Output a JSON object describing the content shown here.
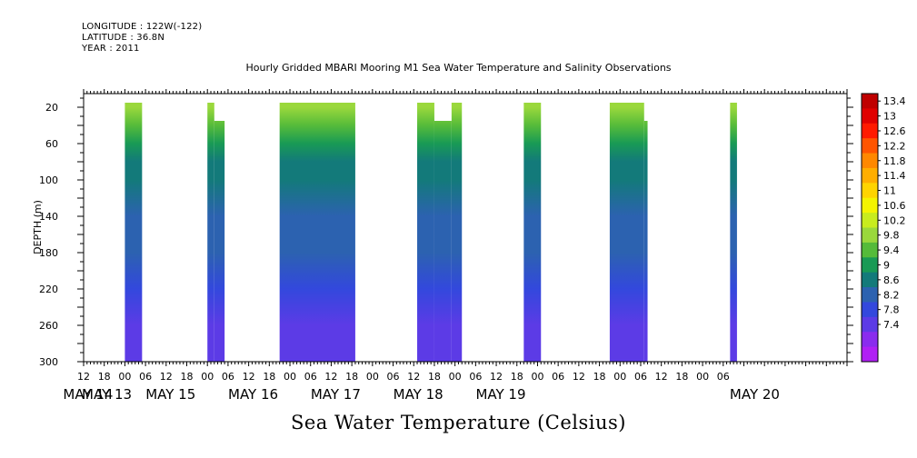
{
  "header": {
    "longitude": "LONGITUDE : 122W(-122)",
    "latitude": "LATITUDE : 36.8N",
    "year": "YEAR : 2011"
  },
  "chart_data": {
    "type": "heatmap",
    "title": "Hourly Gridded MBARI Mooring M1 Sea Water Temperature and Salinity Observations",
    "subtitle": "Sea Water Temperature (Celsius)",
    "ylabel": "DEPTH (m)",
    "y_axis": {
      "reversed": true,
      "range": [
        5,
        300
      ],
      "ticks": [
        20,
        60,
        100,
        140,
        180,
        220,
        260,
        300
      ]
    },
    "x_axis": {
      "range_hours": [
        -12,
        210
      ],
      "hour_ticks": [
        "12",
        "18",
        "00",
        "06",
        "12",
        "18",
        "00",
        "06",
        "12",
        "18",
        "00",
        "06",
        "12",
        "18",
        "00",
        "06",
        "12",
        "18",
        "00",
        "06",
        "12",
        "18",
        "00",
        "06",
        "12",
        "18",
        "00",
        "06",
        "12",
        "18",
        "00",
        "06"
      ],
      "date_labels": [
        "MAY 13",
        "MAY 14",
        "MAY 15",
        "MAY 16",
        "MAY 17",
        "MAY 18",
        "MAY 19",
        "MAY 20"
      ]
    },
    "colorbar": {
      "labels": [
        "13.4",
        "13",
        "12.6",
        "12.2",
        "11.8",
        "11.4",
        "11",
        "10.6",
        "10.2",
        "9.8",
        "9.4",
        "9",
        "8.6",
        "8.2",
        "7.8",
        "7.4"
      ],
      "colors": [
        "#bf0000",
        "#e00000",
        "#ff1a00",
        "#ff5500",
        "#ff8800",
        "#ffae00",
        "#ffd400",
        "#f4f400",
        "#c8ec1e",
        "#9ad83c",
        "#55bb3a",
        "#199a55",
        "#137a7a",
        "#2c62b0",
        "#3348dd",
        "#5c3be6",
        "#8a2cee",
        "#b020f4"
      ]
    },
    "segments": [
      {
        "start_hour": 0,
        "end_hour": 5,
        "top_depth": 20
      },
      {
        "start_hour": 24,
        "end_hour": 26,
        "top_depth": 20
      },
      {
        "start_hour": 26,
        "end_hour": 29,
        "top_depth": 40
      },
      {
        "start_hour": 45,
        "end_hour": 67,
        "top_depth": 20
      },
      {
        "start_hour": 85,
        "end_hour": 90,
        "top_depth": 20
      },
      {
        "start_hour": 90,
        "end_hour": 95,
        "top_depth": 40
      },
      {
        "start_hour": 95,
        "end_hour": 98,
        "top_depth": 20
      },
      {
        "start_hour": 116,
        "end_hour": 121,
        "top_depth": 20
      },
      {
        "start_hour": 141,
        "end_hour": 151,
        "top_depth": 20
      },
      {
        "start_hour": 151,
        "end_hour": 152,
        "top_depth": 40
      },
      {
        "start_hour": 176,
        "end_hour": 178,
        "top_depth": 20
      }
    ],
    "profile": [
      {
        "depth": 20,
        "temp": 10.2
      },
      {
        "depth": 40,
        "temp": 9.6
      },
      {
        "depth": 60,
        "temp": 9.2
      },
      {
        "depth": 80,
        "temp": 9.0
      },
      {
        "depth": 100,
        "temp": 8.8
      },
      {
        "depth": 140,
        "temp": 8.5
      },
      {
        "depth": 180,
        "temp": 8.3
      },
      {
        "depth": 220,
        "temp": 8.0
      },
      {
        "depth": 260,
        "temp": 7.7
      },
      {
        "depth": 300,
        "temp": 7.6
      }
    ]
  }
}
